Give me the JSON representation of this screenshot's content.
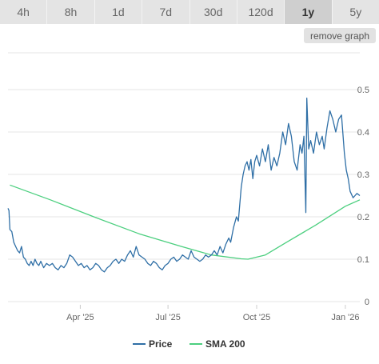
{
  "tabs": [
    {
      "label": "4h",
      "active": false
    },
    {
      "label": "8h",
      "active": false
    },
    {
      "label": "1d",
      "active": false
    },
    {
      "label": "7d",
      "active": false
    },
    {
      "label": "30d",
      "active": false
    },
    {
      "label": "120d",
      "active": false
    },
    {
      "label": "1y",
      "active": true
    },
    {
      "label": "5y",
      "active": false
    }
  ],
  "remove_graph_label": "remove graph",
  "colors": {
    "price": "#2f6fa6",
    "sma": "#4ccf7f",
    "grid": "#e6e6e6",
    "active_tab": "#cfcfcf",
    "tab": "#e4e4e4"
  },
  "chart_data": {
    "type": "line",
    "x_tick_labels": [
      "Apr '25",
      "Jul '25",
      "Oct '25",
      "Jan '26"
    ],
    "y_tick_labels": [
      "0",
      "0.1",
      "0.2",
      "0.3",
      "0.4",
      "0.5"
    ],
    "ylim": [
      0,
      0.5
    ],
    "xlim": [
      "2025-01-16",
      "2026-01-16"
    ],
    "y_axis_side": "right",
    "grid": true,
    "legend": "bottom-center",
    "series": [
      {
        "name": "Price",
        "color": "#2f6fa6",
        "points": [
          [
            "2025-01-16",
            0.22
          ],
          [
            "2025-01-17",
            0.215
          ],
          [
            "2025-01-18",
            0.17
          ],
          [
            "2025-01-20",
            0.165
          ],
          [
            "2025-01-22",
            0.14
          ],
          [
            "2025-01-24",
            0.13
          ],
          [
            "2025-01-26",
            0.12
          ],
          [
            "2025-01-28",
            0.115
          ],
          [
            "2025-01-30",
            0.13
          ],
          [
            "2025-02-01",
            0.105
          ],
          [
            "2025-02-03",
            0.1
          ],
          [
            "2025-02-05",
            0.09
          ],
          [
            "2025-02-07",
            0.085
          ],
          [
            "2025-02-09",
            0.095
          ],
          [
            "2025-02-11",
            0.085
          ],
          [
            "2025-02-13",
            0.1
          ],
          [
            "2025-02-15",
            0.09
          ],
          [
            "2025-02-17",
            0.085
          ],
          [
            "2025-02-19",
            0.095
          ],
          [
            "2025-02-22",
            0.08
          ],
          [
            "2025-02-25",
            0.09
          ],
          [
            "2025-02-28",
            0.085
          ],
          [
            "2025-03-03",
            0.09
          ],
          [
            "2025-03-06",
            0.08
          ],
          [
            "2025-03-09",
            0.075
          ],
          [
            "2025-03-12",
            0.085
          ],
          [
            "2025-03-15",
            0.08
          ],
          [
            "2025-03-18",
            0.09
          ],
          [
            "2025-03-21",
            0.11
          ],
          [
            "2025-03-24",
            0.105
          ],
          [
            "2025-03-27",
            0.095
          ],
          [
            "2025-03-30",
            0.085
          ],
          [
            "2025-04-02",
            0.09
          ],
          [
            "2025-04-05",
            0.08
          ],
          [
            "2025-04-08",
            0.085
          ],
          [
            "2025-04-11",
            0.075
          ],
          [
            "2025-04-14",
            0.08
          ],
          [
            "2025-04-17",
            0.09
          ],
          [
            "2025-04-20",
            0.085
          ],
          [
            "2025-04-23",
            0.075
          ],
          [
            "2025-04-26",
            0.07
          ],
          [
            "2025-04-29",
            0.08
          ],
          [
            "2025-05-02",
            0.085
          ],
          [
            "2025-05-05",
            0.095
          ],
          [
            "2025-05-08",
            0.1
          ],
          [
            "2025-05-11",
            0.09
          ],
          [
            "2025-05-14",
            0.1
          ],
          [
            "2025-05-17",
            0.095
          ],
          [
            "2025-05-20",
            0.11
          ],
          [
            "2025-05-23",
            0.12
          ],
          [
            "2025-05-26",
            0.105
          ],
          [
            "2025-05-29",
            0.13
          ],
          [
            "2025-06-01",
            0.11
          ],
          [
            "2025-06-04",
            0.105
          ],
          [
            "2025-06-07",
            0.1
          ],
          [
            "2025-06-10",
            0.09
          ],
          [
            "2025-06-13",
            0.085
          ],
          [
            "2025-06-16",
            0.095
          ],
          [
            "2025-06-19",
            0.09
          ],
          [
            "2025-06-22",
            0.08
          ],
          [
            "2025-06-25",
            0.075
          ],
          [
            "2025-06-28",
            0.085
          ],
          [
            "2025-07-01",
            0.09
          ],
          [
            "2025-07-04",
            0.1
          ],
          [
            "2025-07-07",
            0.105
          ],
          [
            "2025-07-10",
            0.095
          ],
          [
            "2025-07-13",
            0.1
          ],
          [
            "2025-07-16",
            0.11
          ],
          [
            "2025-07-19",
            0.105
          ],
          [
            "2025-07-22",
            0.1
          ],
          [
            "2025-07-25",
            0.12
          ],
          [
            "2025-07-28",
            0.105
          ],
          [
            "2025-07-31",
            0.1
          ],
          [
            "2025-08-03",
            0.095
          ],
          [
            "2025-08-06",
            0.1
          ],
          [
            "2025-08-09",
            0.11
          ],
          [
            "2025-08-12",
            0.105
          ],
          [
            "2025-08-15",
            0.11
          ],
          [
            "2025-08-18",
            0.12
          ],
          [
            "2025-08-21",
            0.11
          ],
          [
            "2025-08-24",
            0.13
          ],
          [
            "2025-08-27",
            0.115
          ],
          [
            "2025-08-30",
            0.135
          ],
          [
            "2025-09-02",
            0.15
          ],
          [
            "2025-09-04",
            0.14
          ],
          [
            "2025-09-07",
            0.175
          ],
          [
            "2025-09-10",
            0.2
          ],
          [
            "2025-09-12",
            0.19
          ],
          [
            "2025-09-15",
            0.27
          ],
          [
            "2025-09-17",
            0.3
          ],
          [
            "2025-09-19",
            0.32
          ],
          [
            "2025-09-21",
            0.33
          ],
          [
            "2025-09-23",
            0.31
          ],
          [
            "2025-09-25",
            0.335
          ],
          [
            "2025-09-27",
            0.29
          ],
          [
            "2025-09-29",
            0.33
          ],
          [
            "2025-10-01",
            0.345
          ],
          [
            "2025-10-04",
            0.32
          ],
          [
            "2025-10-07",
            0.36
          ],
          [
            "2025-10-10",
            0.33
          ],
          [
            "2025-10-13",
            0.37
          ],
          [
            "2025-10-16",
            0.31
          ],
          [
            "2025-10-19",
            0.34
          ],
          [
            "2025-10-22",
            0.32
          ],
          [
            "2025-10-25",
            0.35
          ],
          [
            "2025-10-28",
            0.4
          ],
          [
            "2025-10-31",
            0.37
          ],
          [
            "2025-11-03",
            0.42
          ],
          [
            "2025-11-06",
            0.39
          ],
          [
            "2025-11-09",
            0.33
          ],
          [
            "2025-11-12",
            0.31
          ],
          [
            "2025-11-15",
            0.37
          ],
          [
            "2025-11-17",
            0.35
          ],
          [
            "2025-11-19",
            0.39
          ],
          [
            "2025-11-21",
            0.21
          ],
          [
            "2025-11-22",
            0.48
          ],
          [
            "2025-11-24",
            0.36
          ],
          [
            "2025-11-26",
            0.38
          ],
          [
            "2025-11-29",
            0.35
          ],
          [
            "2025-12-02",
            0.4
          ],
          [
            "2025-12-05",
            0.37
          ],
          [
            "2025-12-08",
            0.39
          ],
          [
            "2025-12-10",
            0.36
          ],
          [
            "2025-12-13",
            0.41
          ],
          [
            "2025-12-16",
            0.45
          ],
          [
            "2025-12-19",
            0.43
          ],
          [
            "2025-12-22",
            0.4
          ],
          [
            "2025-12-25",
            0.43
          ],
          [
            "2025-12-28",
            0.44
          ],
          [
            "2025-12-31",
            0.35
          ],
          [
            "2026-01-02",
            0.31
          ],
          [
            "2026-01-04",
            0.29
          ],
          [
            "2026-01-06",
            0.26
          ],
          [
            "2026-01-09",
            0.245
          ],
          [
            "2026-01-11",
            0.25
          ],
          [
            "2026-01-13",
            0.255
          ],
          [
            "2026-01-16",
            0.25
          ]
        ]
      },
      {
        "name": "SMA 200",
        "color": "#4ccf7f",
        "points": [
          [
            "2025-01-18",
            0.275
          ],
          [
            "2025-03-01",
            0.24
          ],
          [
            "2025-04-15",
            0.2
          ],
          [
            "2025-06-01",
            0.16
          ],
          [
            "2025-07-15",
            0.13
          ],
          [
            "2025-08-15",
            0.11
          ],
          [
            "2025-09-15",
            0.101
          ],
          [
            "2025-09-22",
            0.1
          ],
          [
            "2025-10-10",
            0.11
          ],
          [
            "2025-11-01",
            0.14
          ],
          [
            "2025-12-01",
            0.18
          ],
          [
            "2026-01-01",
            0.225
          ],
          [
            "2026-01-16",
            0.24
          ]
        ]
      }
    ]
  }
}
